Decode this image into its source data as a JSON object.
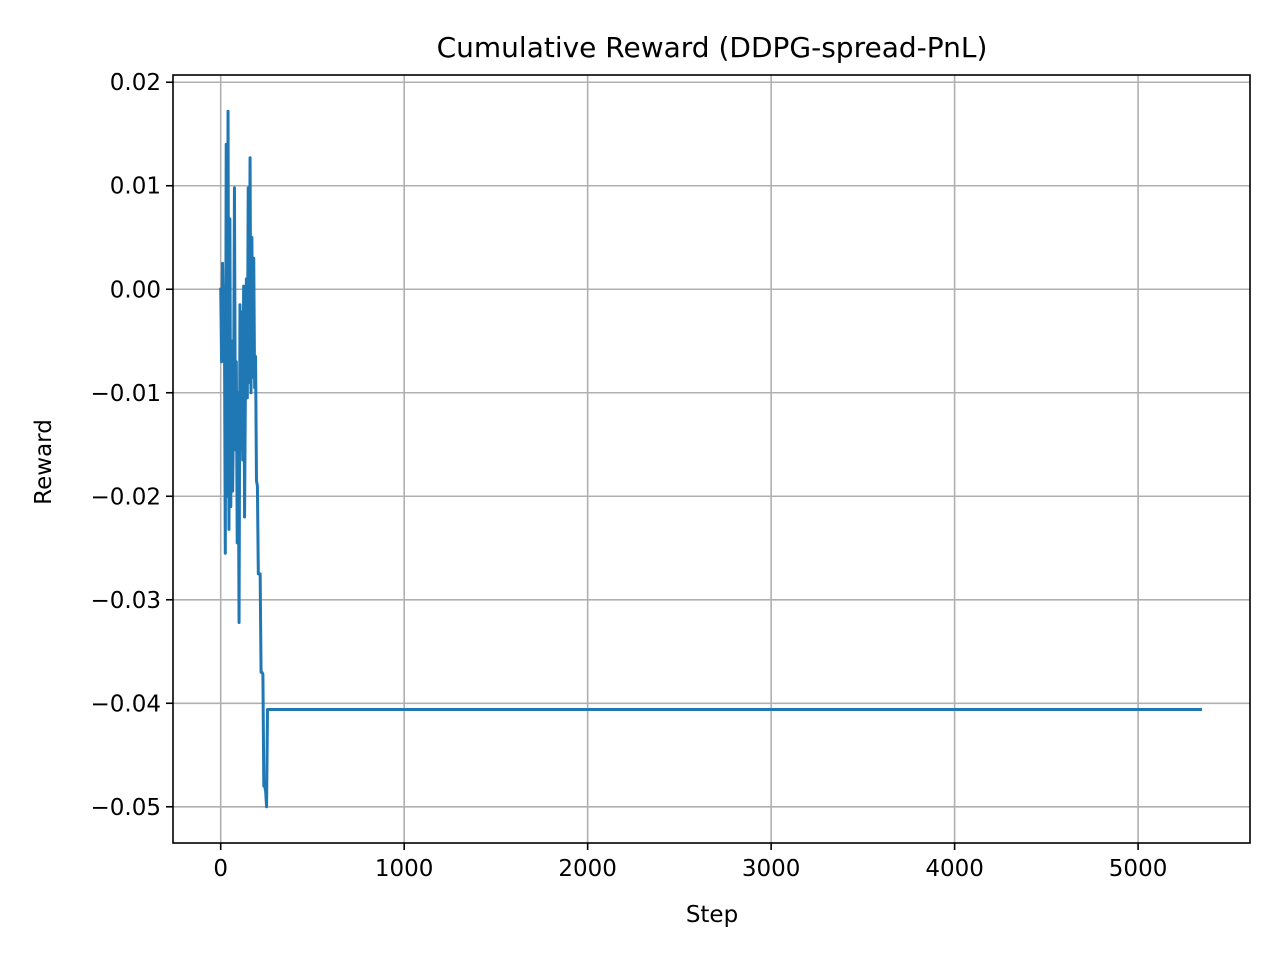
{
  "chart_data": {
    "type": "line",
    "title": "Cumulative Reward (DDPG-spread-PnL)",
    "xlabel": "Step",
    "ylabel": "Reward",
    "xlim": [
      -260,
      5610
    ],
    "ylim": [
      -0.0535,
      0.0207
    ],
    "xticks": [
      0,
      1000,
      2000,
      3000,
      4000,
      5000
    ],
    "xtick_labels": [
      "0",
      "1000",
      "2000",
      "3000",
      "4000",
      "5000"
    ],
    "yticks": [
      0.02,
      0.01,
      0.0,
      -0.01,
      -0.02,
      -0.03,
      -0.04,
      -0.05
    ],
    "ytick_labels": [
      "0.02",
      "0.01",
      "0.00",
      "−0.01",
      "−0.02",
      "−0.03",
      "−0.04",
      "−0.05"
    ],
    "grid": true,
    "legend": "none",
    "series": [
      {
        "color": "#1f77b4",
        "x": [
          0,
          5,
          10,
          15,
          20,
          25,
          30,
          35,
          40,
          45,
          50,
          55,
          60,
          65,
          70,
          75,
          80,
          85,
          90,
          95,
          100,
          105,
          110,
          115,
          120,
          125,
          130,
          135,
          140,
          145,
          150,
          155,
          160,
          165,
          170,
          175,
          180,
          185,
          190,
          195,
          200,
          205,
          210,
          215,
          220,
          225,
          230,
          235,
          240,
          245,
          250,
          255,
          260,
          265,
          270,
          275,
          280,
          285,
          290,
          295,
          300,
          305,
          310,
          315,
          320,
          325,
          330,
          340,
          360,
          400,
          1000,
          2000,
          3000,
          4000,
          5000,
          5340
        ],
        "y": [
          0.0,
          -0.007,
          0.0025,
          -0.004,
          -0.0015,
          -0.0255,
          0.014,
          -0.02,
          0.0172,
          -0.0232,
          0.0068,
          -0.021,
          -0.005,
          -0.0195,
          -0.012,
          0.0098,
          -0.0155,
          -0.007,
          -0.0245,
          -0.01,
          -0.0322,
          -0.0015,
          -0.0155,
          -0.0022,
          -0.0165,
          0.0003,
          -0.022,
          -0.0085,
          0.001,
          -0.0105,
          0.0098,
          -0.009,
          0.0127,
          -0.01,
          0.005,
          -0.0085,
          0.003,
          -0.0095,
          -0.0065,
          -0.0185,
          -0.019,
          -0.0275,
          -0.0275,
          -0.0275,
          -0.037,
          -0.037,
          -0.0372,
          -0.048,
          -0.048,
          -0.0485,
          -0.05,
          -0.0406,
          -0.0406,
          -0.0406,
          -0.0406,
          -0.0406,
          -0.0406,
          -0.0406,
          -0.0406,
          -0.0406,
          -0.0406,
          -0.0406,
          -0.0406,
          -0.0406,
          -0.0406,
          -0.0406,
          -0.0406,
          -0.0406,
          -0.0406,
          -0.0406,
          -0.0406,
          -0.0406,
          -0.0406,
          -0.0406,
          -0.0406,
          -0.0406
        ]
      }
    ]
  }
}
